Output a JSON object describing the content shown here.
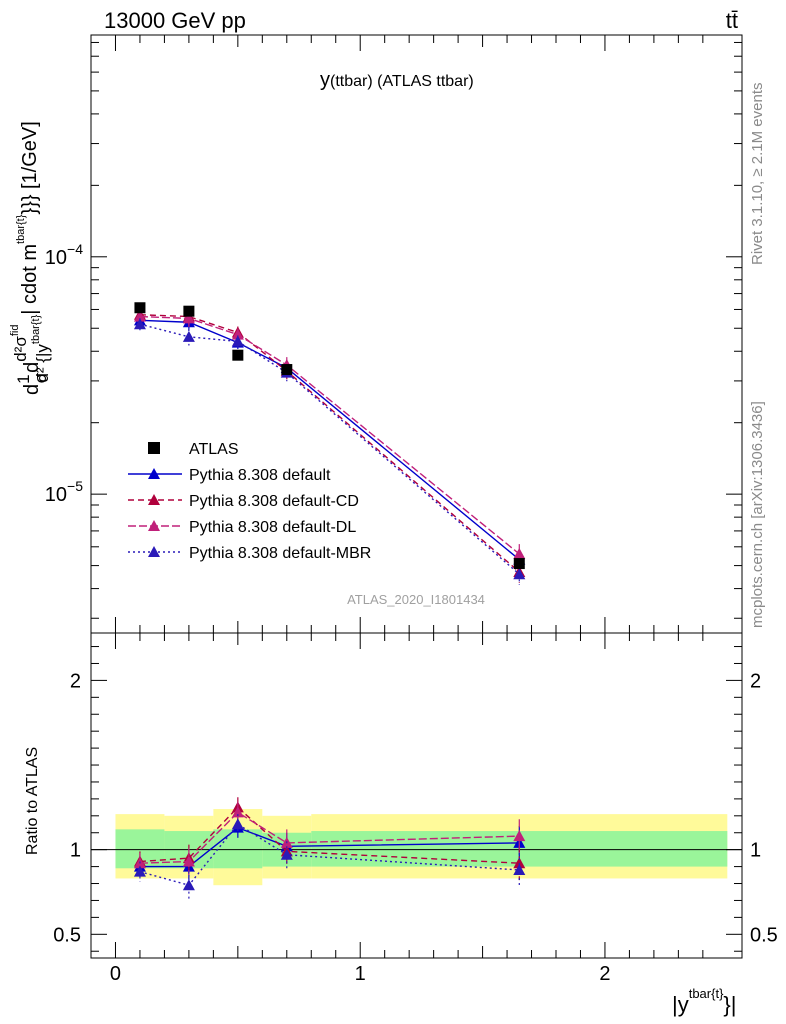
{
  "header": {
    "energy_label": "13000 GeV pp",
    "process_label": "tt̄"
  },
  "side_labels": {
    "rivet": "Rivet 3.1.10, ≥ 2.1M events",
    "mcplots": "mcplots.cern.ch [arXiv:1306.3436]"
  },
  "main_plot": {
    "title_main": "y",
    "title_sub": "(ttbar)  (ATLAS ttbar)",
    "watermark": "ATLAS_2020_I1801434",
    "ylabel": "d(1/σ)d²σ^fid / d²{|y^tbar{t}| cdot m^tbar{t}}}} [1/GeV]",
    "ylabel_parts": {
      "frac1_num": "1",
      "frac1_den": "σ",
      "d_prefix": "d",
      "frac2_num": "d²σ",
      "fid": "fid",
      "frac2_den": "d² {|y",
      "den_sup": "tbar{t}",
      "rest": "| cdot m",
      "rest_sup": "tbar{t}",
      "tail": "}}} [1/GeV]"
    },
    "y_ticks": [
      {
        "value": 1e-05,
        "base": "10",
        "exp": "−5"
      },
      {
        "value": 0.0001,
        "base": "10",
        "exp": "−4"
      }
    ],
    "yscale": "log",
    "ylim": [
      2.6e-06,
      0.00086
    ]
  },
  "ratio_plot": {
    "ylabel": "Ratio to ATLAS",
    "ylim": [
      0.36,
      2.28
    ],
    "y_ticks": [
      "2",
      "1",
      "0.5"
    ],
    "y_tick_values": [
      2,
      1,
      0.5
    ]
  },
  "x_axis": {
    "label": "|y",
    "label_sup": "tbar{t}",
    "label_tail": "}|",
    "xlim": [
      -0.1,
      2.56
    ],
    "ticks": [
      "0",
      "1",
      "2"
    ],
    "tick_values": [
      0,
      1,
      2
    ]
  },
  "colors": {
    "atlas": "#000000",
    "default": "#0000cc",
    "cd": "#b0003c",
    "dl": "#c0207a",
    "mbr": "#2a1ab8",
    "band_inner": "#9af59a",
    "band_outer": "#fffa9a"
  },
  "chart_data": {
    "type": "scatter",
    "x_edges": [
      0,
      0.2,
      0.4,
      0.6,
      0.8,
      2.5
    ],
    "x": [
      0.1,
      0.3,
      0.5,
      0.7,
      1.65
    ],
    "legend": [
      {
        "name": "ATLAS",
        "key": "atlas"
      },
      {
        "name": "Pythia 8.308 default",
        "key": "default"
      },
      {
        "name": "Pythia 8.308 default-CD",
        "key": "cd"
      },
      {
        "name": "Pythia 8.308 default-DL",
        "key": "dl"
      },
      {
        "name": "Pythia 8.308 default-MBR",
        "key": "mbr"
      }
    ],
    "data": {
      "name": "ATLAS",
      "y": [
        6.1e-05,
        5.9e-05,
        3.85e-05,
        3.35e-05,
        5.1e-06
      ],
      "band_inner": [
        [
          0.89,
          1.12
        ],
        [
          0.89,
          1.11
        ],
        [
          0.89,
          1.12
        ],
        [
          0.9,
          1.1
        ],
        [
          0.9,
          1.11
        ]
      ],
      "band_outer": [
        [
          0.83,
          1.21
        ],
        [
          0.83,
          1.2
        ],
        [
          0.79,
          1.24
        ],
        [
          0.83,
          1.2
        ],
        [
          0.83,
          1.21
        ]
      ]
    },
    "series": [
      {
        "name": "Pythia 8.308 default",
        "key": "default",
        "dash": "",
        "marker": "triangle",
        "y": [
          5.4e-05,
          5.3e-05,
          4.35e-05,
          3.4e-05,
          5.3e-06
        ],
        "ratio": [
          0.9,
          0.9,
          1.13,
          1.02,
          1.04
        ],
        "err": [
          0.06,
          0.08,
          0.06,
          0.08,
          0.1
        ]
      },
      {
        "name": "Pythia 8.308 default-CD",
        "key": "cd",
        "dash": "6,4",
        "marker": "triangle",
        "y": [
          5.7e-05,
          5.6e-05,
          4.8e-05,
          3.3e-05,
          4.7e-06
        ],
        "ratio": [
          0.93,
          0.95,
          1.25,
          0.99,
          0.92
        ],
        "err": [
          0.06,
          0.08,
          0.06,
          0.08,
          0.1
        ]
      },
      {
        "name": "Pythia 8.308 default-DL",
        "key": "dl",
        "dash": "8,3",
        "marker": "triangle",
        "y": [
          5.6e-05,
          5.5e-05,
          4.7e-05,
          3.5e-05,
          5.6e-06
        ],
        "ratio": [
          0.92,
          0.93,
          1.22,
          1.04,
          1.08
        ],
        "err": [
          0.06,
          0.08,
          0.06,
          0.08,
          0.1
        ]
      },
      {
        "name": "Pythia 8.308 default-MBR",
        "key": "mbr",
        "dash": "2,3",
        "marker": "triangle",
        "y": [
          5.2e-05,
          4.6e-05,
          4.4e-05,
          3.25e-05,
          4.6e-06
        ],
        "ratio": [
          0.87,
          0.79,
          1.15,
          0.97,
          0.88
        ],
        "err": [
          0.06,
          0.08,
          0.06,
          0.08,
          0.1
        ]
      }
    ]
  }
}
